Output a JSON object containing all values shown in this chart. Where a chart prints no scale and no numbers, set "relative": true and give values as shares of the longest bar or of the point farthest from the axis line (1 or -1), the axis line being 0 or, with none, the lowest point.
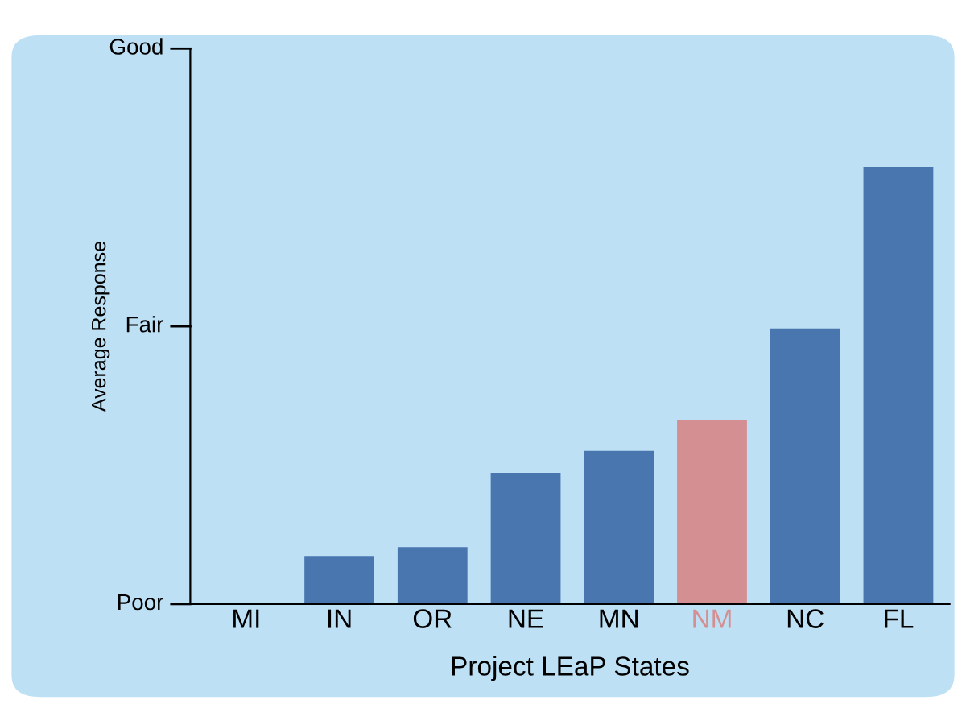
{
  "chart_data": {
    "type": "bar",
    "relative": true,
    "xlabel": "Project LEaP States",
    "ylabel": "Average Response",
    "categories": [
      "MI",
      "IN",
      "OR",
      "NE",
      "MN",
      "NM",
      "NC",
      "FL"
    ],
    "values": [
      0,
      0.11,
      0.13,
      0.3,
      0.35,
      0.42,
      0.63,
      1
    ],
    "colors": [
      "#4a76b0",
      "#4a76b0",
      "#4a76b0",
      "#4a76b0",
      "#4a76b0",
      "#d48f93",
      "#4a76b0",
      "#4a76b0"
    ],
    "annotations": [
      "Poor",
      "Fair",
      "Good"
    ],
    "legend": false
  }
}
